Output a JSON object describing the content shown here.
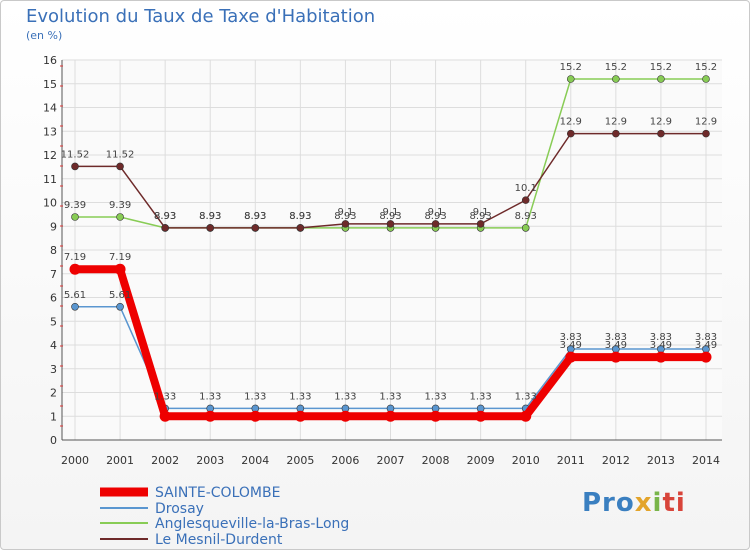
{
  "chart_data": {
    "type": "line",
    "title": "Evolution du Taux de Taxe d'Habitation",
    "subtitle": "(en %)",
    "xlabel": "",
    "ylabel": "",
    "ylim": [
      0,
      16
    ],
    "y_ticks": [
      "0",
      "1",
      "2",
      "3",
      "4",
      "5",
      "6",
      "7",
      "8",
      "9",
      "10",
      "11",
      "12",
      "13",
      "14",
      "15",
      "16"
    ],
    "x": [
      "2000",
      "2001",
      "2002",
      "2003",
      "2004",
      "2005",
      "2006",
      "2007",
      "2008",
      "2009",
      "2010",
      "2011",
      "2012",
      "2013",
      "2014"
    ],
    "grid": true,
    "series": [
      {
        "name": "SAINTE-COLOMBE",
        "color": "#ee0000",
        "values": [
          7.19,
          7.19,
          1.0,
          1.0,
          1.0,
          1.0,
          1.0,
          1.0,
          1.0,
          1.0,
          1.0,
          3.49,
          3.49,
          3.49,
          3.49
        ],
        "labels": [
          "7.19",
          "7.19",
          "",
          "",
          "",
          "",
          "",
          "",
          "",
          "",
          "",
          "3.49",
          "3.49",
          "3.49",
          "3.49"
        ]
      },
      {
        "name": "Drosay",
        "color": "#5a96d0",
        "values": [
          5.61,
          5.61,
          1.33,
          1.33,
          1.33,
          1.33,
          1.33,
          1.33,
          1.33,
          1.33,
          1.33,
          3.83,
          3.83,
          3.83,
          3.83
        ],
        "labels": [
          "5.61",
          "5.61",
          "1.33",
          "1.33",
          "1.33",
          "1.33",
          "1.33",
          "1.33",
          "1.33",
          "1.33",
          "1.33",
          "3.83",
          "3.83",
          "3.83",
          "3.83"
        ]
      },
      {
        "name": "Anglesqueville-la-Bras-Long",
        "color": "#88cc55",
        "values": [
          9.39,
          9.39,
          8.93,
          8.93,
          8.93,
          8.93,
          8.93,
          8.93,
          8.93,
          8.93,
          8.93,
          15.2,
          15.2,
          15.2,
          15.2
        ],
        "labels": [
          "9.39",
          "9.39",
          "8.93",
          "8.93",
          "8.93",
          "8.93",
          "8.93",
          "8.93",
          "8.93",
          "8.93",
          "8.93",
          "15.2",
          "15.2",
          "15.2",
          "15.2"
        ]
      },
      {
        "name": "Le Mesnil-Durdent",
        "color": "#6e2a2a",
        "values": [
          11.52,
          11.52,
          8.93,
          8.93,
          8.93,
          8.93,
          9.1,
          9.1,
          9.1,
          9.1,
          10.1,
          12.9,
          12.9,
          12.9,
          12.9
        ],
        "labels": [
          "11.52",
          "11.52",
          "8.93",
          "8.93",
          "8.93",
          "8.93",
          "9.1",
          "9.1",
          "9.1",
          "9.1",
          "10.1",
          "12.9",
          "12.9",
          "12.9",
          "12.9"
        ]
      }
    ]
  },
  "logo": {
    "p1": "Pro",
    "p2": "x",
    "p3": "i",
    "p4": "ti"
  }
}
